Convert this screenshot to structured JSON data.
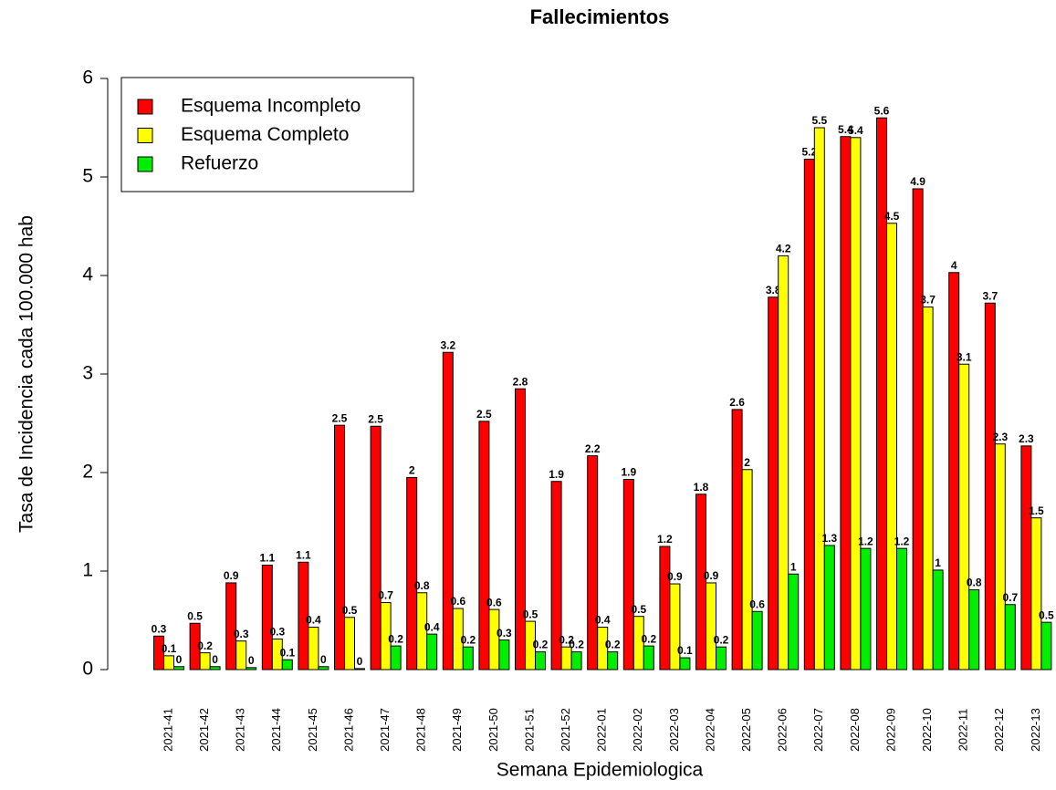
{
  "chart_data": {
    "type": "bar",
    "title": "Fallecimientos",
    "x_label": "Semana Epidemiologica",
    "y_label": "Tasa de Incidencia cada 100.000 hab",
    "categories": [
      "2021-41",
      "2021-42",
      "2021-43",
      "2021-44",
      "2021-45",
      "2021-46",
      "2021-47",
      "2021-48",
      "2021-49",
      "2021-50",
      "2021-51",
      "2021-52",
      "2022-01",
      "2022-02",
      "2022-03",
      "2022-04",
      "2022-05",
      "2022-06",
      "2022-07",
      "2022-08",
      "2022-09",
      "2022-10",
      "2022-11",
      "2022-12",
      "2022-13"
    ],
    "series": [
      {
        "name": "Esquema Incompleto",
        "color": "#ff0000",
        "values": [
          0.34,
          0.47,
          0.88,
          1.06,
          1.09,
          2.48,
          2.47,
          1.95,
          3.22,
          2.52,
          2.85,
          1.91,
          2.17,
          1.93,
          1.25,
          1.78,
          2.64,
          3.78,
          5.18,
          5.41,
          5.6,
          4.88,
          4.03,
          3.72,
          2.27
        ],
        "value_labels": [
          "0.3",
          "0.5",
          "0.9",
          "1.1",
          "1.1",
          "2.5",
          "2.5",
          "2",
          "3.2",
          "2.5",
          "2.8",
          "1.9",
          "2.2",
          "1.9",
          "1.2",
          "1.8",
          "2.6",
          "3.8",
          "5.2",
          "5.4",
          "5.6",
          "4.9",
          "4",
          "3.7",
          "2.3"
        ]
      },
      {
        "name": "Esquema Completo",
        "color": "#ffff00",
        "values": [
          0.14,
          0.17,
          0.29,
          0.31,
          0.43,
          0.53,
          0.68,
          0.78,
          0.62,
          0.61,
          0.49,
          0.23,
          0.43,
          0.54,
          0.87,
          0.88,
          2.03,
          4.2,
          5.5,
          5.4,
          4.53,
          3.68,
          3.1,
          2.29,
          1.54
        ],
        "value_labels": [
          "0.1",
          "0.2",
          "0.3",
          "0.3",
          "0.4",
          "0.5",
          "0.7",
          "0.8",
          "0.6",
          "0.6",
          "0.5",
          "0.2",
          "0.4",
          "0.5",
          "0.9",
          "0.9",
          "2",
          "4.2",
          "5.5",
          "5.4",
          "4.5",
          "3.7",
          "3.1",
          "2.3",
          "1.5"
        ]
      },
      {
        "name": "Refuerzo",
        "color": "#00ee00",
        "values": [
          0.03,
          0.03,
          0.02,
          0.1,
          0.03,
          0.01,
          0.24,
          0.36,
          0.23,
          0.3,
          0.18,
          0.18,
          0.18,
          0.24,
          0.12,
          0.23,
          0.59,
          0.97,
          1.26,
          1.23,
          1.23,
          1.01,
          0.81,
          0.66,
          0.48
        ],
        "value_labels": [
          "0",
          "0",
          "0",
          "0.1",
          "0",
          "0",
          "0.2",
          "0.4",
          "0.2",
          "0.3",
          "0.2",
          "0.2",
          "0.2",
          "0.2",
          "0.1",
          "0.2",
          "0.6",
          "1",
          "1.3",
          "1.2",
          "1.2",
          "1",
          "0.8",
          "0.7",
          "0.5"
        ]
      }
    ],
    "ylim": [
      0,
      6
    ],
    "yticks": [
      0,
      1,
      2,
      3,
      4,
      5,
      6
    ],
    "grid": false,
    "legend": "topleft"
  }
}
